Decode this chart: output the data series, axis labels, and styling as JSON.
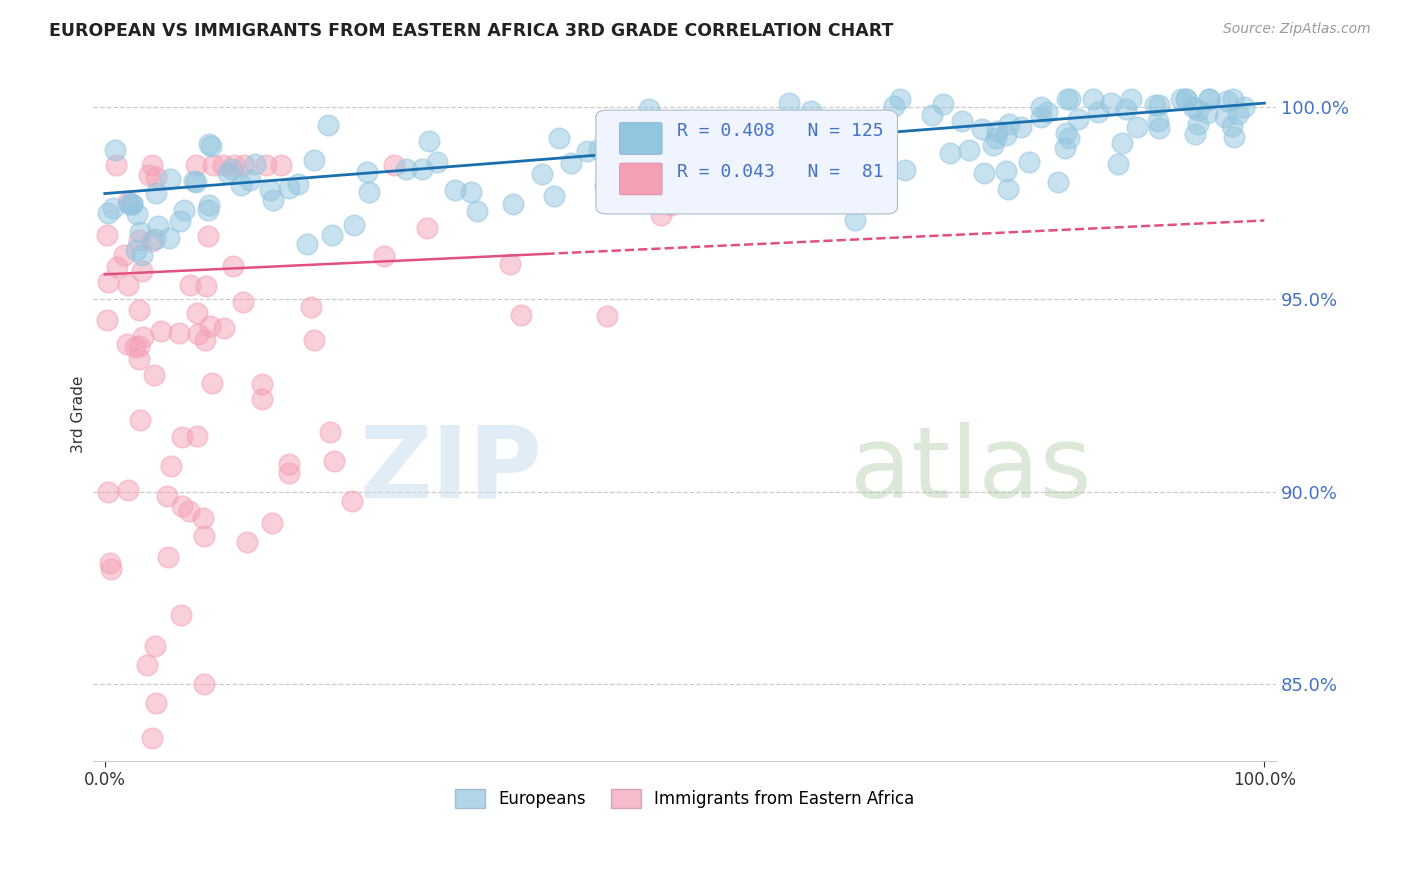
{
  "title": "EUROPEAN VS IMMIGRANTS FROM EASTERN AFRICA 3RD GRADE CORRELATION CHART",
  "source_text": "Source: ZipAtlas.com",
  "ylabel": "3rd Grade",
  "legend_labels": [
    "Europeans",
    "Immigrants from Eastern Africa"
  ],
  "blue_color": "#92c5de",
  "pink_color": "#f4a0b5",
  "blue_line_color": "#1a6faf",
  "pink_line_color": "#e05080",
  "R_blue": 0.408,
  "N_blue": 125,
  "R_pink": 0.043,
  "N_pink": 81,
  "background_color": "#ffffff",
  "grid_color": "#cccccc",
  "ytick_color": "#4472c4",
  "watermark_zip_color": "#c8dff0",
  "watermark_atlas_color": "#a8c8a0"
}
